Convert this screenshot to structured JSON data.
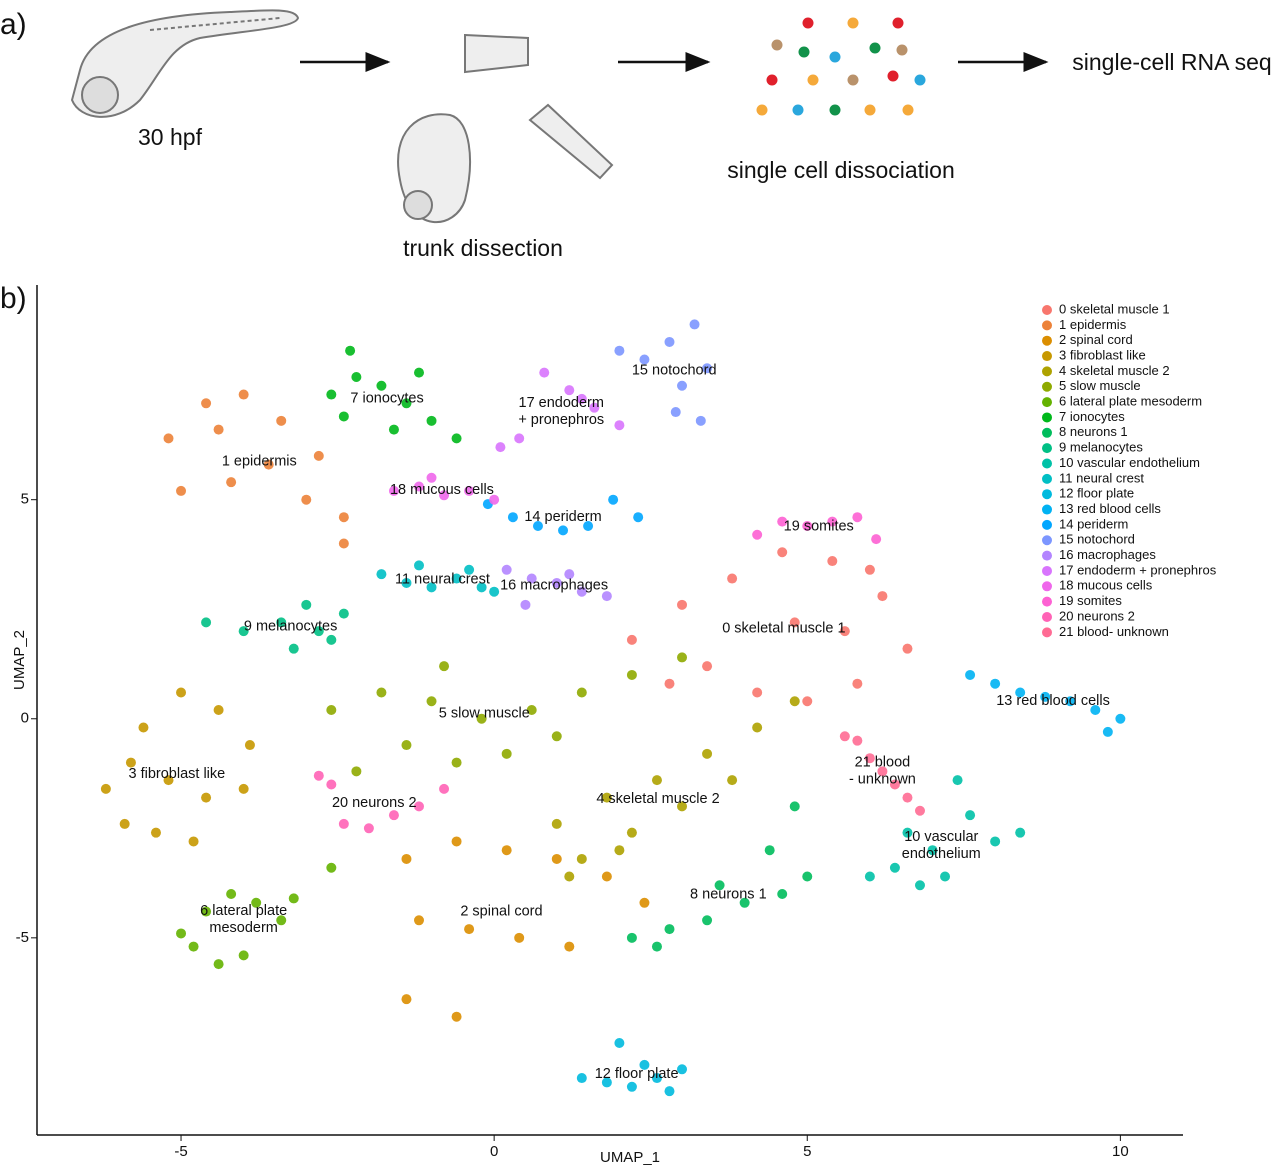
{
  "panel_a": {
    "label": "a)",
    "steps": [
      "30 hpf",
      "trunk dissection",
      "single cell dissociation",
      "single-cell RNA seq"
    ]
  },
  "chart_data": {
    "type": "scatter",
    "panel_label": "b)",
    "x_label": "UMAP_1",
    "y_label": "UMAP_2",
    "xlim": [
      -7.3,
      11.0
    ],
    "ylim": [
      -9.5,
      9.9
    ],
    "xticks": [
      -5,
      0,
      5,
      10
    ],
    "yticks": [
      -5,
      0,
      5
    ],
    "grid": false,
    "legend": "upper right",
    "series": [
      {
        "name": "0 skeletal muscle 1",
        "color": "#F8766D",
        "label": [
          "0 skeletal muscle 1"
        ],
        "x": [
          2.2,
          3.0,
          3.8,
          4.6,
          5.4,
          6.2,
          6.6,
          3.4,
          4.2,
          5.0,
          5.8,
          2.8,
          4.8,
          5.6,
          6.0
        ],
        "y": [
          1.8,
          2.6,
          3.2,
          3.8,
          3.6,
          2.8,
          1.6,
          1.2,
          0.6,
          0.4,
          0.8,
          0.8,
          2.2,
          2.0,
          3.4
        ]
      },
      {
        "name": "1 epidermis",
        "color": "#EC8239",
        "label": [
          "1 epidermis"
        ],
        "x": [
          -5.2,
          -4.6,
          -4.0,
          -3.4,
          -2.8,
          -2.4,
          -5.0,
          -4.2,
          -3.6,
          -3.0,
          -2.4,
          -4.4
        ],
        "y": [
          6.4,
          7.2,
          7.4,
          6.8,
          6.0,
          4.6,
          5.2,
          5.4,
          5.8,
          5.0,
          4.0,
          6.6
        ]
      },
      {
        "name": "2 spinal cord",
        "color": "#DB8E00",
        "label": [
          "2 spinal cord"
        ],
        "x": [
          -1.4,
          -0.6,
          0.2,
          1.0,
          1.8,
          2.4,
          -1.2,
          -0.4,
          0.4,
          1.2,
          -1.4,
          -0.6
        ],
        "y": [
          -3.2,
          -2.8,
          -3.0,
          -3.2,
          -3.6,
          -4.2,
          -4.6,
          -4.8,
          -5.0,
          -5.2,
          -6.4,
          -6.8
        ]
      },
      {
        "name": "3 fibroblast like",
        "color": "#C79800",
        "label": [
          "3 fibroblast like"
        ],
        "x": [
          -6.2,
          -5.6,
          -5.0,
          -4.4,
          -3.9,
          -5.8,
          -5.2,
          -4.6,
          -4.0,
          -5.4,
          -4.8,
          -5.9
        ],
        "y": [
          -1.6,
          -0.2,
          0.6,
          0.2,
          -0.6,
          -1.0,
          -1.4,
          -1.8,
          -1.6,
          -2.6,
          -2.8,
          -2.4
        ]
      },
      {
        "name": "4 skeletal muscle 2",
        "color": "#AEA200",
        "label": [
          "4 skeletal muscle 2"
        ],
        "x": [
          1.0,
          1.8,
          2.6,
          3.4,
          4.2,
          4.8,
          1.4,
          2.2,
          3.0,
          3.8,
          1.2,
          2.0
        ],
        "y": [
          -2.4,
          -1.8,
          -1.4,
          -0.8,
          -0.2,
          0.4,
          -3.2,
          -2.6,
          -2.0,
          -1.4,
          -3.6,
          -3.0
        ]
      },
      {
        "name": "5 slow muscle",
        "color": "#8FAA00",
        "label": [
          "5 slow muscle"
        ],
        "x": [
          -2.6,
          -1.8,
          -1.0,
          -0.2,
          0.6,
          1.4,
          2.2,
          3.0,
          -1.4,
          -0.6,
          0.2,
          1.0,
          -2.2,
          -0.8
        ],
        "y": [
          0.2,
          0.6,
          0.4,
          0.0,
          0.2,
          0.6,
          1.0,
          1.4,
          -0.6,
          -1.0,
          -0.8,
          -0.4,
          -1.2,
          1.2
        ]
      },
      {
        "name": "6 lateral plate mesoderm",
        "color": "#64B200",
        "label": [
          "6 lateral plate",
          "mesoderm"
        ],
        "x": [
          -5.0,
          -4.6,
          -4.2,
          -3.8,
          -3.4,
          -4.8,
          -4.4,
          -4.0,
          -3.2,
          -2.6
        ],
        "y": [
          -4.9,
          -4.4,
          -4.0,
          -4.2,
          -4.6,
          -5.2,
          -5.6,
          -5.4,
          -4.1,
          -3.4
        ]
      },
      {
        "name": "7 ionocytes",
        "color": "#00B81B",
        "label": [
          "7 ionocytes"
        ],
        "x": [
          -2.6,
          -2.2,
          -1.8,
          -1.4,
          -1.0,
          -0.6,
          -2.4,
          -1.6,
          -2.3,
          -1.2
        ],
        "y": [
          7.4,
          7.8,
          7.6,
          7.2,
          6.8,
          6.4,
          6.9,
          6.6,
          8.4,
          7.9
        ]
      },
      {
        "name": "8 neurons 1",
        "color": "#00BD5C",
        "label": [
          "8 neurons 1"
        ],
        "x": [
          2.2,
          2.8,
          3.4,
          4.0,
          4.6,
          5.0,
          4.4,
          4.8,
          3.6,
          2.6
        ],
        "y": [
          -5.0,
          -4.8,
          -4.6,
          -4.2,
          -4.0,
          -3.6,
          -3.0,
          -2.0,
          -3.8,
          -5.2
        ]
      },
      {
        "name": "9 melanocytes",
        "color": "#00C085",
        "label": [
          "9 melanocytes"
        ],
        "x": [
          -4.6,
          -4.0,
          -3.4,
          -2.8,
          -3.2,
          -2.6,
          -3.0,
          -2.4
        ],
        "y": [
          2.2,
          2.0,
          2.2,
          2.0,
          1.6,
          1.8,
          2.6,
          2.4
        ]
      },
      {
        "name": "10 vascular endothelium",
        "color": "#00C1A7",
        "label": [
          "10 vascular",
          "endothelium"
        ],
        "x": [
          6.0,
          6.4,
          6.8,
          7.2,
          7.6,
          8.0,
          8.4,
          7.0,
          7.4,
          6.6
        ],
        "y": [
          -3.6,
          -3.4,
          -3.8,
          -3.6,
          -2.2,
          -2.8,
          -2.6,
          -3.0,
          -1.4,
          -2.6
        ]
      },
      {
        "name": "11 neural crest",
        "color": "#00BFC4",
        "label": [
          "11 neural crest"
        ],
        "x": [
          -1.8,
          -1.4,
          -1.0,
          -0.6,
          -0.2,
          0.0,
          -1.2,
          -0.4
        ],
        "y": [
          3.3,
          3.1,
          3.0,
          3.2,
          3.0,
          2.9,
          3.5,
          3.4
        ]
      },
      {
        "name": "12 floor plate",
        "color": "#00BADE",
        "label": [
          "12 floor plate"
        ],
        "x": [
          1.4,
          1.8,
          2.2,
          2.6,
          3.0,
          2.8,
          2.4,
          2.0
        ],
        "y": [
          -8.2,
          -8.3,
          -8.4,
          -8.2,
          -8.0,
          -8.5,
          -7.9,
          -7.4
        ]
      },
      {
        "name": "13 red blood cells",
        "color": "#00B2F3",
        "label": [
          "13 red blood cells"
        ],
        "x": [
          7.6,
          8.0,
          8.4,
          8.8,
          9.2,
          9.6,
          10.0,
          9.8
        ],
        "y": [
          1.0,
          0.8,
          0.6,
          0.5,
          0.4,
          0.2,
          0.0,
          -0.3
        ]
      },
      {
        "name": "14 periderm",
        "color": "#00A6FF",
        "label": [
          "14 periderm"
        ],
        "x": [
          -0.1,
          0.3,
          0.7,
          1.1,
          1.5,
          1.9,
          2.3
        ],
        "y": [
          4.9,
          4.6,
          4.4,
          4.3,
          4.4,
          5.0,
          4.6
        ]
      },
      {
        "name": "15 notochord",
        "color": "#7C96FF",
        "label": [
          "15 notochord"
        ],
        "x": [
          2.0,
          2.4,
          2.8,
          3.2,
          3.4,
          3.0,
          2.9,
          3.3
        ],
        "y": [
          8.4,
          8.2,
          8.6,
          9.0,
          8.0,
          7.6,
          7.0,
          6.8
        ]
      },
      {
        "name": "16 macrophages",
        "color": "#B385FF",
        "label": [
          "16 macrophages"
        ],
        "x": [
          0.2,
          0.6,
          1.0,
          1.4,
          1.8,
          0.5,
          1.2
        ],
        "y": [
          3.4,
          3.2,
          3.1,
          2.9,
          2.8,
          2.6,
          3.3
        ]
      },
      {
        "name": "17 endoderm + pronephros",
        "color": "#D874FD",
        "label": [
          "17 endoderm",
          "+ pronephros"
        ],
        "x": [
          0.8,
          1.2,
          1.6,
          2.0,
          0.4,
          0.1,
          1.4
        ],
        "y": [
          7.9,
          7.5,
          7.1,
          6.7,
          6.4,
          6.2,
          7.3
        ]
      },
      {
        "name": "18 mucous cells",
        "color": "#EF67EB",
        "label": [
          "18 mucous cells"
        ],
        "x": [
          -1.6,
          -1.2,
          -0.8,
          -0.4,
          0.0,
          -1.0
        ],
        "y": [
          5.2,
          5.3,
          5.1,
          5.2,
          5.0,
          5.5
        ]
      },
      {
        "name": "19 somites",
        "color": "#FD61D3",
        "label": [
          "19 somites"
        ],
        "x": [
          4.2,
          4.6,
          5.0,
          5.4,
          5.8,
          6.1
        ],
        "y": [
          4.2,
          4.5,
          4.4,
          4.5,
          4.6,
          4.1
        ]
      },
      {
        "name": "20 neurons 2",
        "color": "#FF63B6",
        "label": [
          "20 neurons 2"
        ],
        "x": [
          -2.8,
          -2.4,
          -2.0,
          -1.6,
          -1.2,
          -0.8,
          -2.6
        ],
        "y": [
          -1.3,
          -2.4,
          -2.5,
          -2.2,
          -2.0,
          -1.6,
          -1.5
        ]
      },
      {
        "name": "21 blood- unknown",
        "color": "#FF6B94",
        "label": [
          "21 blood",
          "- unknown"
        ],
        "x": [
          5.6,
          5.8,
          6.0,
          6.2,
          6.4,
          6.6,
          6.8
        ],
        "y": [
          -0.4,
          -0.5,
          -0.9,
          -1.2,
          -1.5,
          -1.8,
          -2.1
        ]
      }
    ]
  }
}
